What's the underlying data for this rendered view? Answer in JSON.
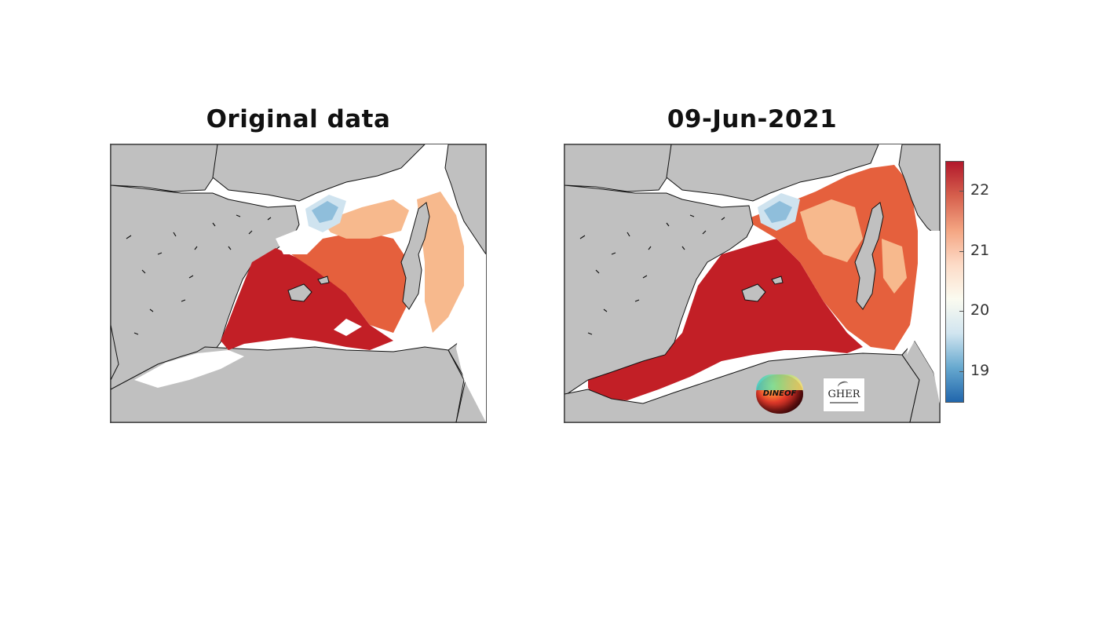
{
  "panels": [
    {
      "title": "Original data",
      "coverage": "partial-with-clouds"
    },
    {
      "title": "09-Jun-2021",
      "coverage": "full-reconstruction"
    }
  ],
  "colorbar": {
    "min": 18.5,
    "max": 22.5,
    "ticks": [
      "19",
      "20",
      "21",
      "22"
    ],
    "tick_values": [
      19,
      20,
      21,
      22
    ],
    "colormap": [
      "#2166ac",
      "#67a9cf",
      "#d1e5f0",
      "#fbfbf0",
      "#fddbc7",
      "#f4a582",
      "#d6604d",
      "#b2182b"
    ]
  },
  "colors": {
    "land": "#c0c0c0",
    "missing": "#ffffff",
    "coast": "#111111",
    "hot": "#c21f26",
    "warm": "#e5603d",
    "mild": "#f7b98d",
    "cool": "#cfe3ef",
    "cold": "#8fbedb"
  },
  "logos": {
    "dineof_text": "DINEOF",
    "gher_text": "GHER"
  }
}
